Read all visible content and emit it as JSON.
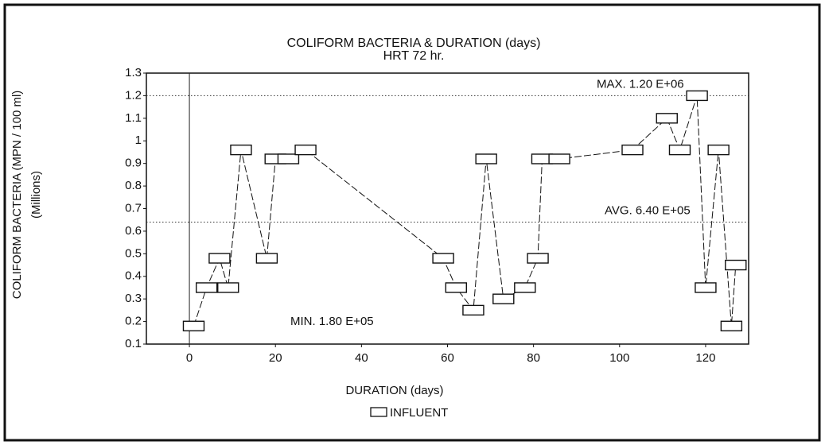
{
  "chart_data": {
    "type": "line",
    "title": "COLIFORM BACTERIA & DURATION (days)",
    "subtitle": "HRT 72 hr.",
    "y_label": "COLIFORM BACTERIA (MPN / 100 ml)",
    "y_label_units": "(Millions)",
    "x_label": "DURATION (days)",
    "x": [
      1,
      4,
      7,
      9,
      12,
      18,
      20,
      23,
      27,
      59,
      62,
      66,
      69,
      73,
      78,
      81,
      82,
      86,
      103,
      111,
      114,
      118,
      120,
      123,
      126,
      127
    ],
    "series": [
      {
        "name": "INFLUENT",
        "color": "#111111",
        "values": [
          0.18,
          0.35,
          0.48,
          0.35,
          0.96,
          0.48,
          0.92,
          0.92,
          0.96,
          0.48,
          0.35,
          0.25,
          0.92,
          0.3,
          0.35,
          0.48,
          0.92,
          0.92,
          0.96,
          1.1,
          0.96,
          1.2,
          0.35,
          0.96,
          0.18,
          0.45
        ]
      }
    ],
    "reference_lines": [
      {
        "label": "MAX. 1.20 E+06",
        "value": 1.2
      },
      {
        "label": "AVG. 6.40 E+05",
        "value": 0.64
      }
    ],
    "annotations": [
      "MIN. 1.80 E+05"
    ],
    "xlim": [
      -10,
      130
    ],
    "xticks": [
      0,
      20,
      40,
      60,
      80,
      100,
      120
    ],
    "ylim": [
      0.1,
      1.3
    ],
    "yticks": [
      0.1,
      0.2,
      0.3,
      0.4,
      0.5,
      0.6,
      0.7,
      0.8,
      0.9,
      1,
      1.1,
      1.2,
      1.3
    ]
  }
}
